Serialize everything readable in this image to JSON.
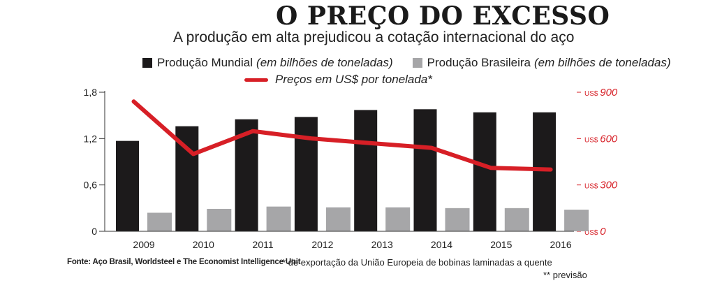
{
  "header": {
    "title": "O PREÇO DO EXCESSO",
    "subtitle": "A produção em alta prejudicou a cotação internacional do aço"
  },
  "legend": {
    "world_label": "Produção Mundial",
    "world_unit": "(em bilhões de toneladas)",
    "brazil_label": "Produção Brasileira",
    "brazil_unit": "(em bilhões de toneladas)",
    "price_label": "Preços em US$ por tonelada*"
  },
  "footer": {
    "source": "Fonte: Aço Brasil, Worldsteel e The Economist Intelligence Unit",
    "note1": "* de exportação da União Europeia de bobinas laminadas a quente",
    "note2": "** previsão"
  },
  "colors": {
    "world": "#1c1a1b",
    "brazil": "#a6a6a8",
    "price": "#d71f26",
    "axis": "#333333"
  },
  "chart_data": {
    "type": "bar",
    "categories": [
      "2009",
      "2010",
      "2011",
      "2012",
      "2013",
      "2014",
      "2015",
      "2016"
    ],
    "series": [
      {
        "name": "Produção Mundial",
        "unit": "(em bilhões de toneladas)",
        "type": "bar",
        "values": [
          1.17,
          1.36,
          1.45,
          1.48,
          1.57,
          1.58,
          1.54,
          1.54
        ]
      },
      {
        "name": "Produção Brasileira",
        "unit": "(em bilhões de toneladas)",
        "type": "bar",
        "values": [
          0.24,
          0.29,
          0.32,
          0.31,
          0.31,
          0.3,
          0.3,
          0.28
        ]
      },
      {
        "name": "Preços em US$ por tonelada*",
        "type": "line",
        "axis": "right",
        "values": [
          840,
          500,
          648,
          600,
          570,
          540,
          410,
          400
        ]
      }
    ],
    "y_left": {
      "ylim": [
        0,
        1.8
      ],
      "ticks": [
        "0",
        "0,6",
        "1,2",
        "1,8"
      ],
      "tick_values": [
        0,
        0.6,
        1.2,
        1.8
      ]
    },
    "y_right": {
      "ylim": [
        0,
        900
      ],
      "tick_values": [
        0,
        300,
        600,
        900
      ],
      "ticks": [
        {
          "prefix": "US$",
          "value": "0"
        },
        {
          "prefix": "US$",
          "value": "300"
        },
        {
          "prefix": "US$",
          "value": "600"
        },
        {
          "prefix": "US$",
          "value": "900"
        }
      ]
    },
    "grid": false,
    "legend_position": "top"
  }
}
